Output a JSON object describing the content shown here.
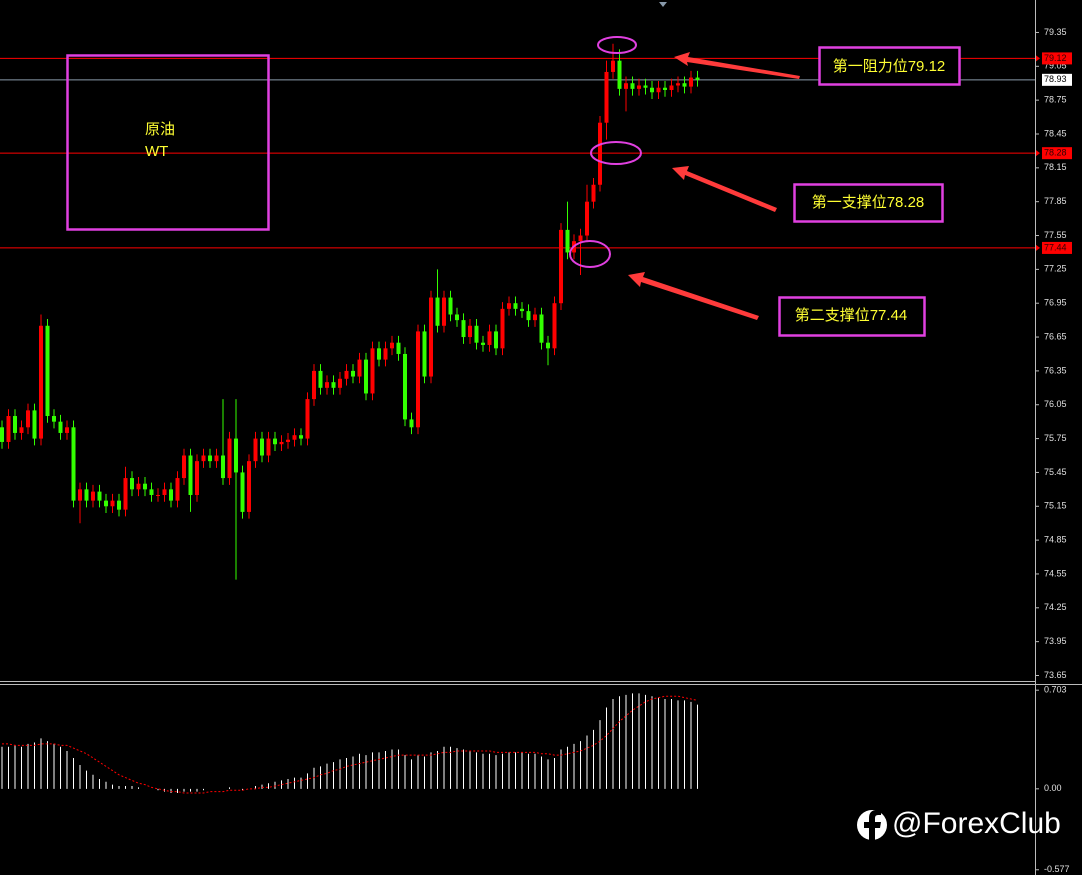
{
  "chart_data": [
    {
      "type": "candlestick",
      "up_color": "#ff0000",
      "down_color": "#33ff00",
      "ylim": [
        73.61,
        79.62
      ],
      "yticks": [
        79.35,
        79.05,
        78.75,
        78.45,
        78.15,
        77.85,
        77.55,
        77.25,
        76.95,
        76.65,
        76.35,
        76.05,
        75.75,
        75.45,
        75.15,
        74.85,
        74.55,
        74.25,
        73.95,
        73.65
      ],
      "levels": [
        79.12,
        78.28,
        77.44
      ],
      "level_color": "#ff0000",
      "current_price": 78.93,
      "label_lines": [
        "原油",
        "WT"
      ],
      "annotations": [
        "第一阻力位79.12",
        "第一支撑位78.28",
        "第二支撑位77.44"
      ],
      "open": [
        75.85,
        75.72,
        75.95,
        75.8,
        75.85,
        76.0,
        75.75,
        76.75,
        75.95,
        75.9,
        75.8,
        75.85,
        75.2,
        75.3,
        75.2,
        75.28,
        75.2,
        75.15,
        75.2,
        75.12,
        75.4,
        75.3,
        75.35,
        75.3,
        75.25,
        75.25,
        75.3,
        75.2,
        75.4,
        75.6,
        75.25,
        75.55,
        75.6,
        75.55,
        75.6,
        75.4,
        75.75,
        75.45,
        75.1,
        75.55,
        75.75,
        75.6,
        75.75,
        75.7,
        75.72,
        75.74,
        75.78,
        75.75,
        76.1,
        76.35,
        76.2,
        76.25,
        76.2,
        76.28,
        76.35,
        76.3,
        76.45,
        76.15,
        76.55,
        76.45,
        76.55,
        76.6,
        76.5,
        75.92,
        75.85,
        76.7,
        76.3,
        77.0,
        76.75,
        77.0,
        76.85,
        76.8,
        76.65,
        76.75,
        76.6,
        76.58,
        76.7,
        76.55,
        76.9,
        76.95,
        76.9,
        76.88,
        76.8,
        76.85,
        76.6,
        76.55,
        76.95,
        77.6,
        77.4,
        77.5,
        77.55,
        77.85,
        78.0,
        78.55,
        79.0,
        79.1,
        78.85,
        78.9,
        78.85,
        78.88,
        78.86,
        78.82,
        78.86,
        78.84,
        78.88,
        78.9,
        78.87,
        78.95
      ],
      "high": [
        75.91,
        76.01,
        76.01,
        75.91,
        76.06,
        76.06,
        76.85,
        76.81,
        76.01,
        75.96,
        75.91,
        75.91,
        75.36,
        75.36,
        75.34,
        75.34,
        75.26,
        75.26,
        75.26,
        75.5,
        75.46,
        75.41,
        75.41,
        75.36,
        75.31,
        75.36,
        75.36,
        75.46,
        75.66,
        75.66,
        75.61,
        75.66,
        75.66,
        75.66,
        76.1,
        75.81,
        76.1,
        75.51,
        75.61,
        75.81,
        75.81,
        75.81,
        75.81,
        75.78,
        75.8,
        75.84,
        75.84,
        76.16,
        76.41,
        76.41,
        76.31,
        76.31,
        76.34,
        76.41,
        76.41,
        76.51,
        76.51,
        76.61,
        76.61,
        76.61,
        76.66,
        76.66,
        76.56,
        75.98,
        76.76,
        76.76,
        77.06,
        77.25,
        77.06,
        77.06,
        76.91,
        76.86,
        76.81,
        76.81,
        76.66,
        76.76,
        76.76,
        76.96,
        77.01,
        77.01,
        76.96,
        76.94,
        76.91,
        76.91,
        76.66,
        77.01,
        77.66,
        77.85,
        77.56,
        77.61,
        78.0,
        78.06,
        78.61,
        79.1,
        79.25,
        79.2,
        78.96,
        78.96,
        78.94,
        78.94,
        78.92,
        78.92,
        78.92,
        78.94,
        78.96,
        78.96,
        79.01,
        79.01
      ],
      "low": [
        75.66,
        75.66,
        75.74,
        75.74,
        75.79,
        75.69,
        75.69,
        75.89,
        75.84,
        75.74,
        75.74,
        75.14,
        75.0,
        75.14,
        75.14,
        75.14,
        75.09,
        75.09,
        75.06,
        75.06,
        75.24,
        75.24,
        75.24,
        75.19,
        75.19,
        75.19,
        75.14,
        75.14,
        75.34,
        75.1,
        75.19,
        75.49,
        75.49,
        75.49,
        75.34,
        75.34,
        74.5,
        75.04,
        75.04,
        75.49,
        75.54,
        75.54,
        75.64,
        75.64,
        75.66,
        75.68,
        75.69,
        75.69,
        76.04,
        76.14,
        76.14,
        76.14,
        76.14,
        76.22,
        76.24,
        76.24,
        76.09,
        76.09,
        76.39,
        76.39,
        76.49,
        76.44,
        75.86,
        75.79,
        75.79,
        76.24,
        76.24,
        76.69,
        76.69,
        76.79,
        76.74,
        76.59,
        76.59,
        76.54,
        76.52,
        76.52,
        76.49,
        76.49,
        76.84,
        76.84,
        76.82,
        76.74,
        76.74,
        76.54,
        76.4,
        76.49,
        76.89,
        77.34,
        77.34,
        77.2,
        77.49,
        77.79,
        77.94,
        78.4,
        78.94,
        78.79,
        78.65,
        78.79,
        78.79,
        78.8,
        78.76,
        78.76,
        78.78,
        78.78,
        78.82,
        78.81,
        78.81,
        78.87
      ],
      "close": [
        75.72,
        75.95,
        75.8,
        75.85,
        76.0,
        75.75,
        76.75,
        75.95,
        75.9,
        75.8,
        75.85,
        75.2,
        75.3,
        75.2,
        75.28,
        75.2,
        75.15,
        75.2,
        75.12,
        75.4,
        75.3,
        75.35,
        75.3,
        75.25,
        75.25,
        75.3,
        75.2,
        75.4,
        75.6,
        75.25,
        75.55,
        75.6,
        75.55,
        75.6,
        75.4,
        75.75,
        75.45,
        75.1,
        75.55,
        75.75,
        75.6,
        75.75,
        75.7,
        75.72,
        75.74,
        75.78,
        75.75,
        76.1,
        76.35,
        76.2,
        76.25,
        76.2,
        76.28,
        76.35,
        76.3,
        76.45,
        76.15,
        76.55,
        76.45,
        76.55,
        76.6,
        76.5,
        75.92,
        75.85,
        76.7,
        76.3,
        77.0,
        76.75,
        77.0,
        76.85,
        76.8,
        76.65,
        76.75,
        76.6,
        76.58,
        76.7,
        76.55,
        76.9,
        76.95,
        76.9,
        76.88,
        76.8,
        76.85,
        76.6,
        76.55,
        76.95,
        77.6,
        77.4,
        77.5,
        77.55,
        77.85,
        78.0,
        78.55,
        79.0,
        79.1,
        78.85,
        78.9,
        78.85,
        78.88,
        78.86,
        78.82,
        78.86,
        78.84,
        78.88,
        78.9,
        78.87,
        78.95,
        78.93
      ]
    },
    {
      "type": "macd",
      "ylim": [
        -0.6,
        0.74
      ],
      "yticks": [
        0.703,
        {
          "value": 0,
          "label": "0.00"
        },
        -0.577
      ],
      "histogram": {
        "color": "#ffffff",
        "values": [
          0.3,
          0.3,
          0.31,
          0.3,
          0.32,
          0.33,
          0.36,
          0.34,
          0.32,
          0.3,
          0.27,
          0.22,
          0.17,
          0.13,
          0.1,
          0.07,
          0.05,
          0.03,
          0.02,
          0.02,
          0.02,
          0.01,
          0.0,
          0.0,
          -0.01,
          -0.02,
          -0.03,
          -0.03,
          -0.02,
          -0.02,
          -0.02,
          -0.01,
          0.0,
          0.0,
          0.0,
          0.01,
          0.0,
          -0.01,
          0.0,
          0.02,
          0.03,
          0.04,
          0.05,
          0.06,
          0.07,
          0.08,
          0.08,
          0.11,
          0.15,
          0.16,
          0.18,
          0.19,
          0.21,
          0.22,
          0.23,
          0.25,
          0.24,
          0.26,
          0.26,
          0.27,
          0.28,
          0.28,
          0.24,
          0.21,
          0.24,
          0.23,
          0.26,
          0.27,
          0.3,
          0.3,
          0.29,
          0.28,
          0.27,
          0.26,
          0.25,
          0.25,
          0.24,
          0.25,
          0.26,
          0.26,
          0.26,
          0.25,
          0.25,
          0.23,
          0.21,
          0.22,
          0.28,
          0.3,
          0.32,
          0.34,
          0.38,
          0.42,
          0.49,
          0.58,
          0.64,
          0.66,
          0.67,
          0.68,
          0.68,
          0.67,
          0.66,
          0.65,
          0.64,
          0.64,
          0.63,
          0.63,
          0.62,
          0.6
        ]
      },
      "signal": {
        "color": "#ff0000",
        "values": [
          0.32,
          0.32,
          0.31,
          0.31,
          0.31,
          0.31,
          0.32,
          0.32,
          0.32,
          0.31,
          0.31,
          0.29,
          0.27,
          0.25,
          0.22,
          0.19,
          0.16,
          0.13,
          0.1,
          0.08,
          0.06,
          0.04,
          0.03,
          0.01,
          0.0,
          -0.01,
          -0.02,
          -0.02,
          -0.03,
          -0.03,
          -0.03,
          -0.03,
          -0.02,
          -0.02,
          -0.02,
          -0.01,
          -0.01,
          -0.01,
          0.0,
          0.0,
          0.01,
          0.01,
          0.02,
          0.03,
          0.04,
          0.05,
          0.06,
          0.07,
          0.08,
          0.1,
          0.11,
          0.13,
          0.14,
          0.16,
          0.17,
          0.18,
          0.19,
          0.2,
          0.21,
          0.22,
          0.23,
          0.24,
          0.24,
          0.24,
          0.24,
          0.24,
          0.24,
          0.25,
          0.26,
          0.26,
          0.27,
          0.27,
          0.27,
          0.27,
          0.27,
          0.27,
          0.26,
          0.26,
          0.26,
          0.26,
          0.26,
          0.26,
          0.26,
          0.25,
          0.25,
          0.24,
          0.24,
          0.25,
          0.26,
          0.27,
          0.29,
          0.31,
          0.34,
          0.38,
          0.43,
          0.48,
          0.52,
          0.56,
          0.59,
          0.62,
          0.64,
          0.65,
          0.66,
          0.66,
          0.66,
          0.65,
          0.64,
          0.63
        ]
      }
    }
  ],
  "watermark": "@ForexClub"
}
